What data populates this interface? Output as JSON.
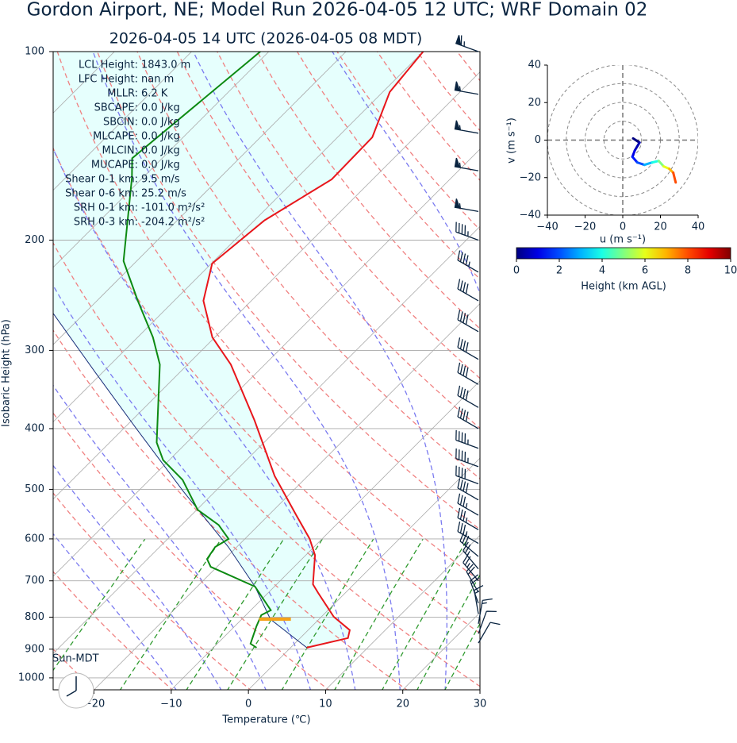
{
  "chart_data": [
    {
      "type": "skewt",
      "title": "Gordon Airport, NE; Model Run 2026-04-05 12 UTC; WRF Domain 02",
      "subtitle": "2026-04-05 14 UTC  (2026-04-05 08 MDT)",
      "xlabel": "Temperature (℃)",
      "ylabel": "Isobaric Height (hPa)",
      "xlim": [
        -25.3,
        30
      ],
      "ylim": [
        1045,
        100
      ],
      "xticks": [
        {
          "value": -20,
          "label": "−20"
        },
        {
          "value": -10,
          "label": "−10"
        },
        0,
        10,
        20,
        30
      ],
      "yticks": [
        100,
        200,
        300,
        400,
        500,
        600,
        700,
        800,
        900,
        1000
      ],
      "grid": true,
      "temperature": {
        "color": "#e8161b",
        "pressure": [
          895,
          864,
          839,
          799,
          732,
          709,
          637,
          600,
          550,
          476,
          388,
          316,
          286,
          250,
          218,
          186,
          160,
          137,
          116,
          100
        ],
        "values": [
          2.1,
          6.2,
          5.4,
          1.6,
          -3.5,
          -5.3,
          -8.8,
          -11.6,
          -16.4,
          -24.3,
          -34.1,
          -44.4,
          -50.3,
          -56.2,
          -59.9,
          -58.7,
          -55.3,
          -55.5,
          -59.1,
          -60.0
        ]
      },
      "dewpoint": {
        "color": "#0d8a12",
        "pressure": [
          895,
          882,
          827,
          794,
          780,
          715,
          665,
          646,
          618,
          600,
          570,
          539,
          483,
          449,
          421,
          316,
          286,
          250,
          216,
          159,
          148,
          100
        ],
        "values": [
          -4.4,
          -5.7,
          -7.2,
          -8.0,
          -7.4,
          -12.5,
          -20.8,
          -22.3,
          -22.8,
          -22.1,
          -25.2,
          -29.9,
          -35.7,
          -40.8,
          -43.9,
          -53.6,
          -58.0,
          -64.7,
          -71.7,
          -81.4,
          -83.9,
          -81.1
        ]
      },
      "parcel": {
        "color": "#1a2f7a",
        "pressure": [
          895,
          806,
          715,
          618,
          504,
          399,
          326,
          262
        ],
        "values": [
          2.1,
          -6.3,
          -12.5,
          -21.1,
          -34.1,
          -48.5,
          -60.8,
          -74.0
        ]
      },
      "lcl": {
        "pressure": 806,
        "temperature": -5.7,
        "color": "#f5a31a"
      },
      "winds": {
        "color": "#0a2440",
        "pressure": [
          100,
          117,
          135,
          155,
          180,
          200,
          225,
          250,
          280,
          310,
          340,
          370,
          400,
          430,
          460,
          490,
          520,
          550,
          580,
          610,
          640,
          670,
          700,
          730,
          760,
          790,
          820,
          850,
          880
        ],
        "speed": [
          65,
          55,
          55,
          55,
          55,
          45,
          45,
          40,
          40,
          40,
          40,
          40,
          40,
          45,
          45,
          40,
          40,
          35,
          35,
          35,
          30,
          25,
          25,
          20,
          20,
          15,
          15,
          10,
          10
        ],
        "direction": [
          290,
          280,
          280,
          280,
          280,
          290,
          300,
          300,
          300,
          300,
          300,
          300,
          300,
          290,
          290,
          290,
          300,
          300,
          300,
          300,
          310,
          320,
          320,
          330,
          340,
          350,
          10,
          20,
          30
        ]
      },
      "stats": [
        [
          "LCL Height:",
          "1843.0 m"
        ],
        [
          "LFC Height:",
          "nan m"
        ],
        [
          "MLLR:",
          "6.2 K"
        ],
        [
          "SBCAPE:",
          "0.0 J/kg"
        ],
        [
          "SBCIN:",
          "0.0 J/kg"
        ],
        [
          "MLCAPE:",
          "0.0 J/kg"
        ],
        [
          "MLCIN:",
          "0.0 J/kg"
        ],
        [
          "MUCAPE:",
          "0.0 J/kg"
        ],
        [
          "Shear 0-1 km:",
          "9.5 m/s"
        ],
        [
          "Shear 0-6 km:",
          "25.2 m/s"
        ],
        [
          "SRH 0-1 km:",
          "-101.0 m²/s²"
        ],
        [
          "SRH 0-3 km:",
          "-204.2 m²/s²"
        ]
      ],
      "clock_label": "Sun-MDT"
    },
    {
      "type": "hodograph",
      "xlabel": "u (m s⁻¹)",
      "ylabel": "v (m s⁻¹)",
      "xlim": [
        -40,
        40
      ],
      "ylim": [
        -40,
        40
      ],
      "xticks": [
        {
          "value": -40,
          "label": "−40"
        },
        {
          "value": -20,
          "label": "−20"
        },
        0,
        20,
        40
      ],
      "yticks": [
        {
          "value": -40,
          "label": "−40"
        },
        {
          "value": -20,
          "label": "−20"
        },
        0,
        20,
        40
      ],
      "u": [
        5.5,
        8.9,
        6.4,
        5.1,
        7.7,
        11.5,
        15.7,
        19.1,
        21.7,
        24.7,
        26.8,
        28.1
      ],
      "v": [
        0.9,
        -1.3,
        -5.5,
        -8.9,
        -11.9,
        -13.2,
        -11.9,
        -11.1,
        -14.0,
        -15.3,
        -17.4,
        -22.6
      ],
      "height_km": [
        0,
        0.5,
        1,
        1.5,
        2,
        3,
        4,
        5,
        6,
        7,
        8,
        10
      ],
      "colorbar": {
        "label": "Height (km AGL)",
        "lim": [
          0,
          10
        ],
        "ticks": [
          0,
          2,
          4,
          6,
          8,
          10
        ],
        "colormap": "jet"
      }
    }
  ]
}
